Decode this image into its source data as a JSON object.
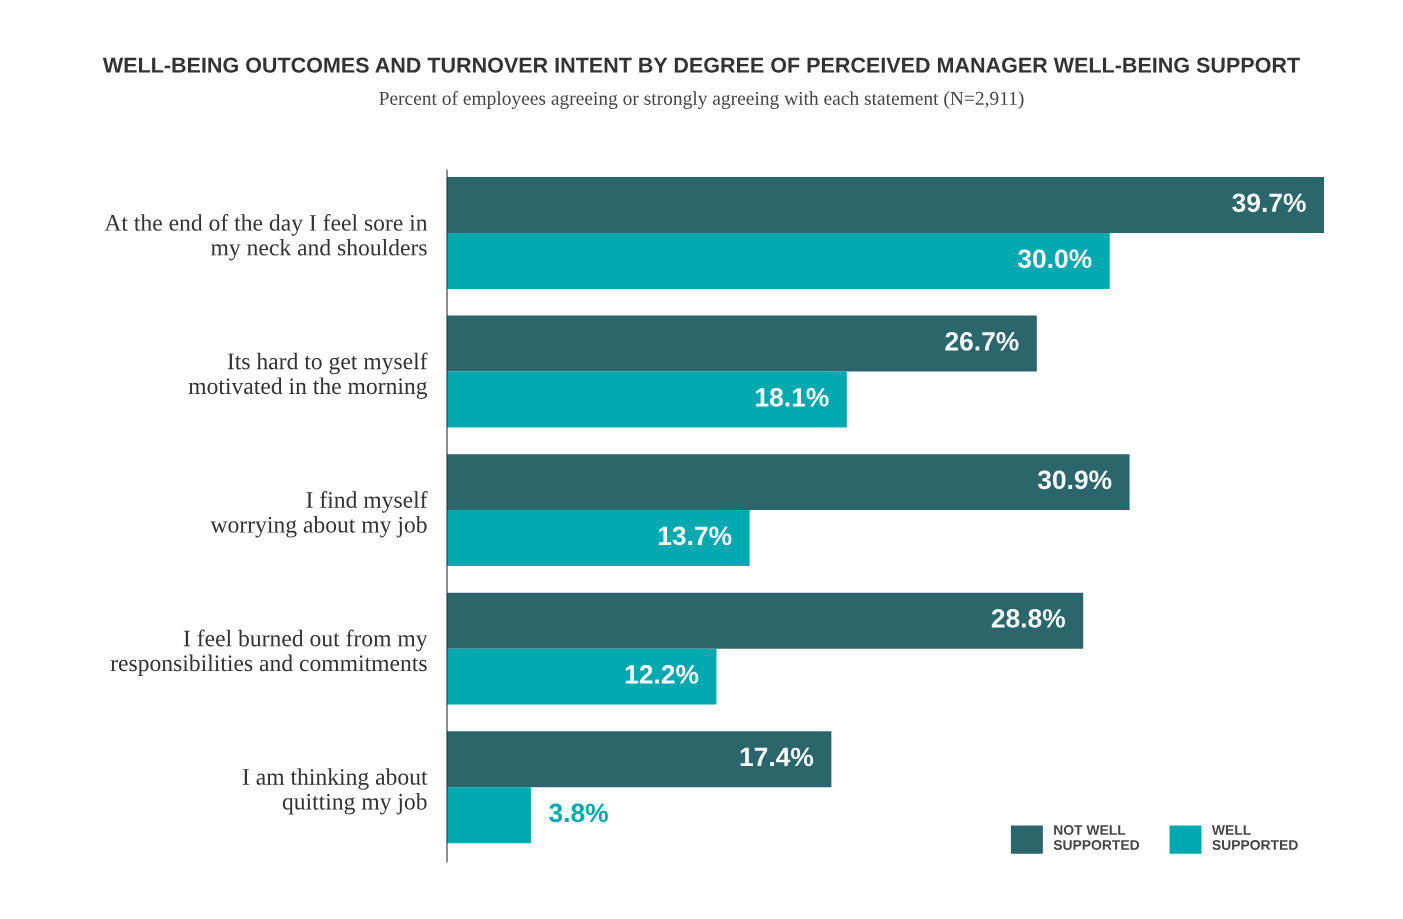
{
  "chart_data": {
    "type": "bar",
    "orientation": "horizontal",
    "title": "WELL-BEING OUTCOMES AND TURNOVER INTENT BY DEGREE OF PERCEIVED MANAGER WELL-BEING SUPPORT",
    "subtitle": "Percent of employees agreeing or strongly agreeing with each statement (N=2,911)",
    "categories": [
      "At the end of the day I feel sore in\nmy neck and shoulders",
      "Its hard to get myself\nmotivated in the morning",
      "I find myself\nworrying about my job",
      "I feel burned out from my\nresponsibilities and commitments",
      "I am thinking about\nquitting my job"
    ],
    "series": [
      {
        "name": "NOT WELL\nSUPPORTED",
        "color": "#2a666b",
        "values": [
          39.7,
          26.7,
          30.9,
          28.8,
          17.4
        ],
        "value_labels": [
          "39.7%",
          "26.7%",
          "30.9%",
          "28.8%",
          "17.4%"
        ]
      },
      {
        "name": "WELL\nSUPPORTED",
        "color": "#00a9b0",
        "values": [
          30.0,
          18.1,
          13.7,
          12.2,
          3.8
        ],
        "value_labels": [
          "30.0%",
          "18.1%",
          "13.7%",
          "12.2%",
          "3.8%"
        ]
      }
    ],
    "legend": "bottom right",
    "grid": false
  }
}
